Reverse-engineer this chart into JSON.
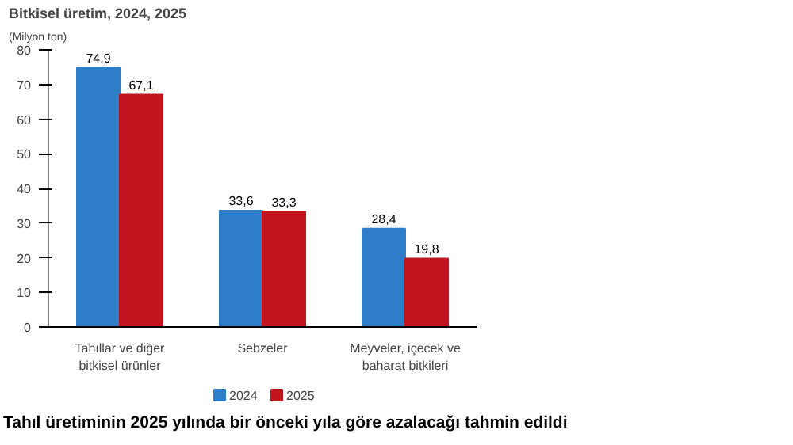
{
  "chart_data": {
    "type": "bar",
    "title": "Bitkisel üretim, 2024, 2025",
    "ylabel": "(Milyon ton)",
    "categories": [
      "Tahıllar ve diğer bitkisel ürünler",
      "Sebzeler",
      "Meyveler, içecek ve baharat bitkileri"
    ],
    "series": [
      {
        "name": "2024",
        "color": "#2e7dc8",
        "values": [
          74.9,
          33.6,
          28.4
        ],
        "value_labels": [
          "74,9",
          "33,6",
          "28,4"
        ]
      },
      {
        "name": "2025",
        "color": "#c0151f",
        "values": [
          67.1,
          33.3,
          19.8
        ],
        "value_labels": [
          "67,1",
          "33,3",
          "19,8"
        ]
      }
    ],
    "ylim": [
      0,
      80
    ],
    "yticks": [
      0,
      10,
      20,
      30,
      40,
      50,
      60,
      70,
      80
    ],
    "legend": "bottom",
    "annotations": [
      "Tahıl üretiminin 2025 yılında bir önceki yıla göre azalacağı tahmin edildi"
    ]
  }
}
